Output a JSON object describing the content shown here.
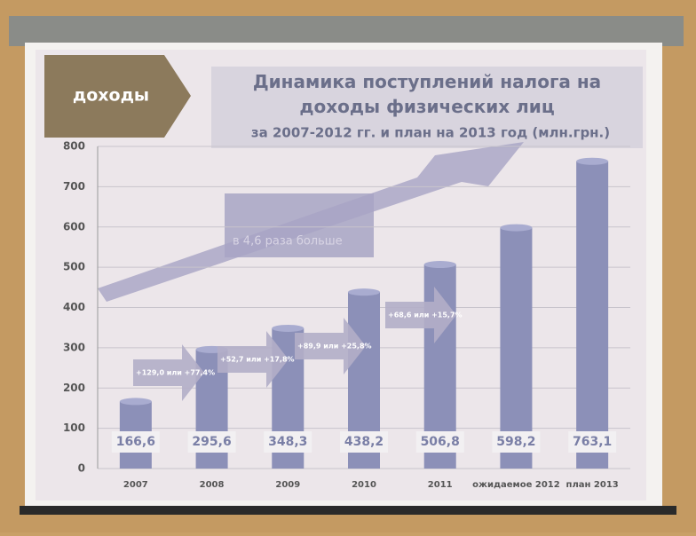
{
  "chart_data": {
    "type": "bar",
    "section": "доходы",
    "title": "Динамика поступлений налога на доходы физических лиц",
    "subtitle": "за 2007-2012 гг. и план на 2013 год (млн.грн.)",
    "categories": [
      "2007",
      "2008",
      "2009",
      "2010",
      "2011",
      "ожидаемое 2012",
      "план 2013"
    ],
    "values": [
      166.6,
      295.6,
      348.3,
      438.2,
      506.8,
      598.2,
      763.1
    ],
    "value_labels": [
      "166,6",
      "295,6",
      "348,3",
      "438,2",
      "506,8",
      "598,2",
      "763,1"
    ],
    "color": "#8c90b8",
    "ylim": [
      0,
      800
    ],
    "yticks": [
      0,
      100,
      200,
      300,
      400,
      500,
      600,
      700,
      800
    ],
    "grid": true,
    "annotations": [
      "+129,0 или +77,4%",
      "+52,7 или +17,8%",
      "+89,9 или +25,8%",
      "+68,6 или +15,7%",
      "в 4,6 раза больше"
    ]
  }
}
